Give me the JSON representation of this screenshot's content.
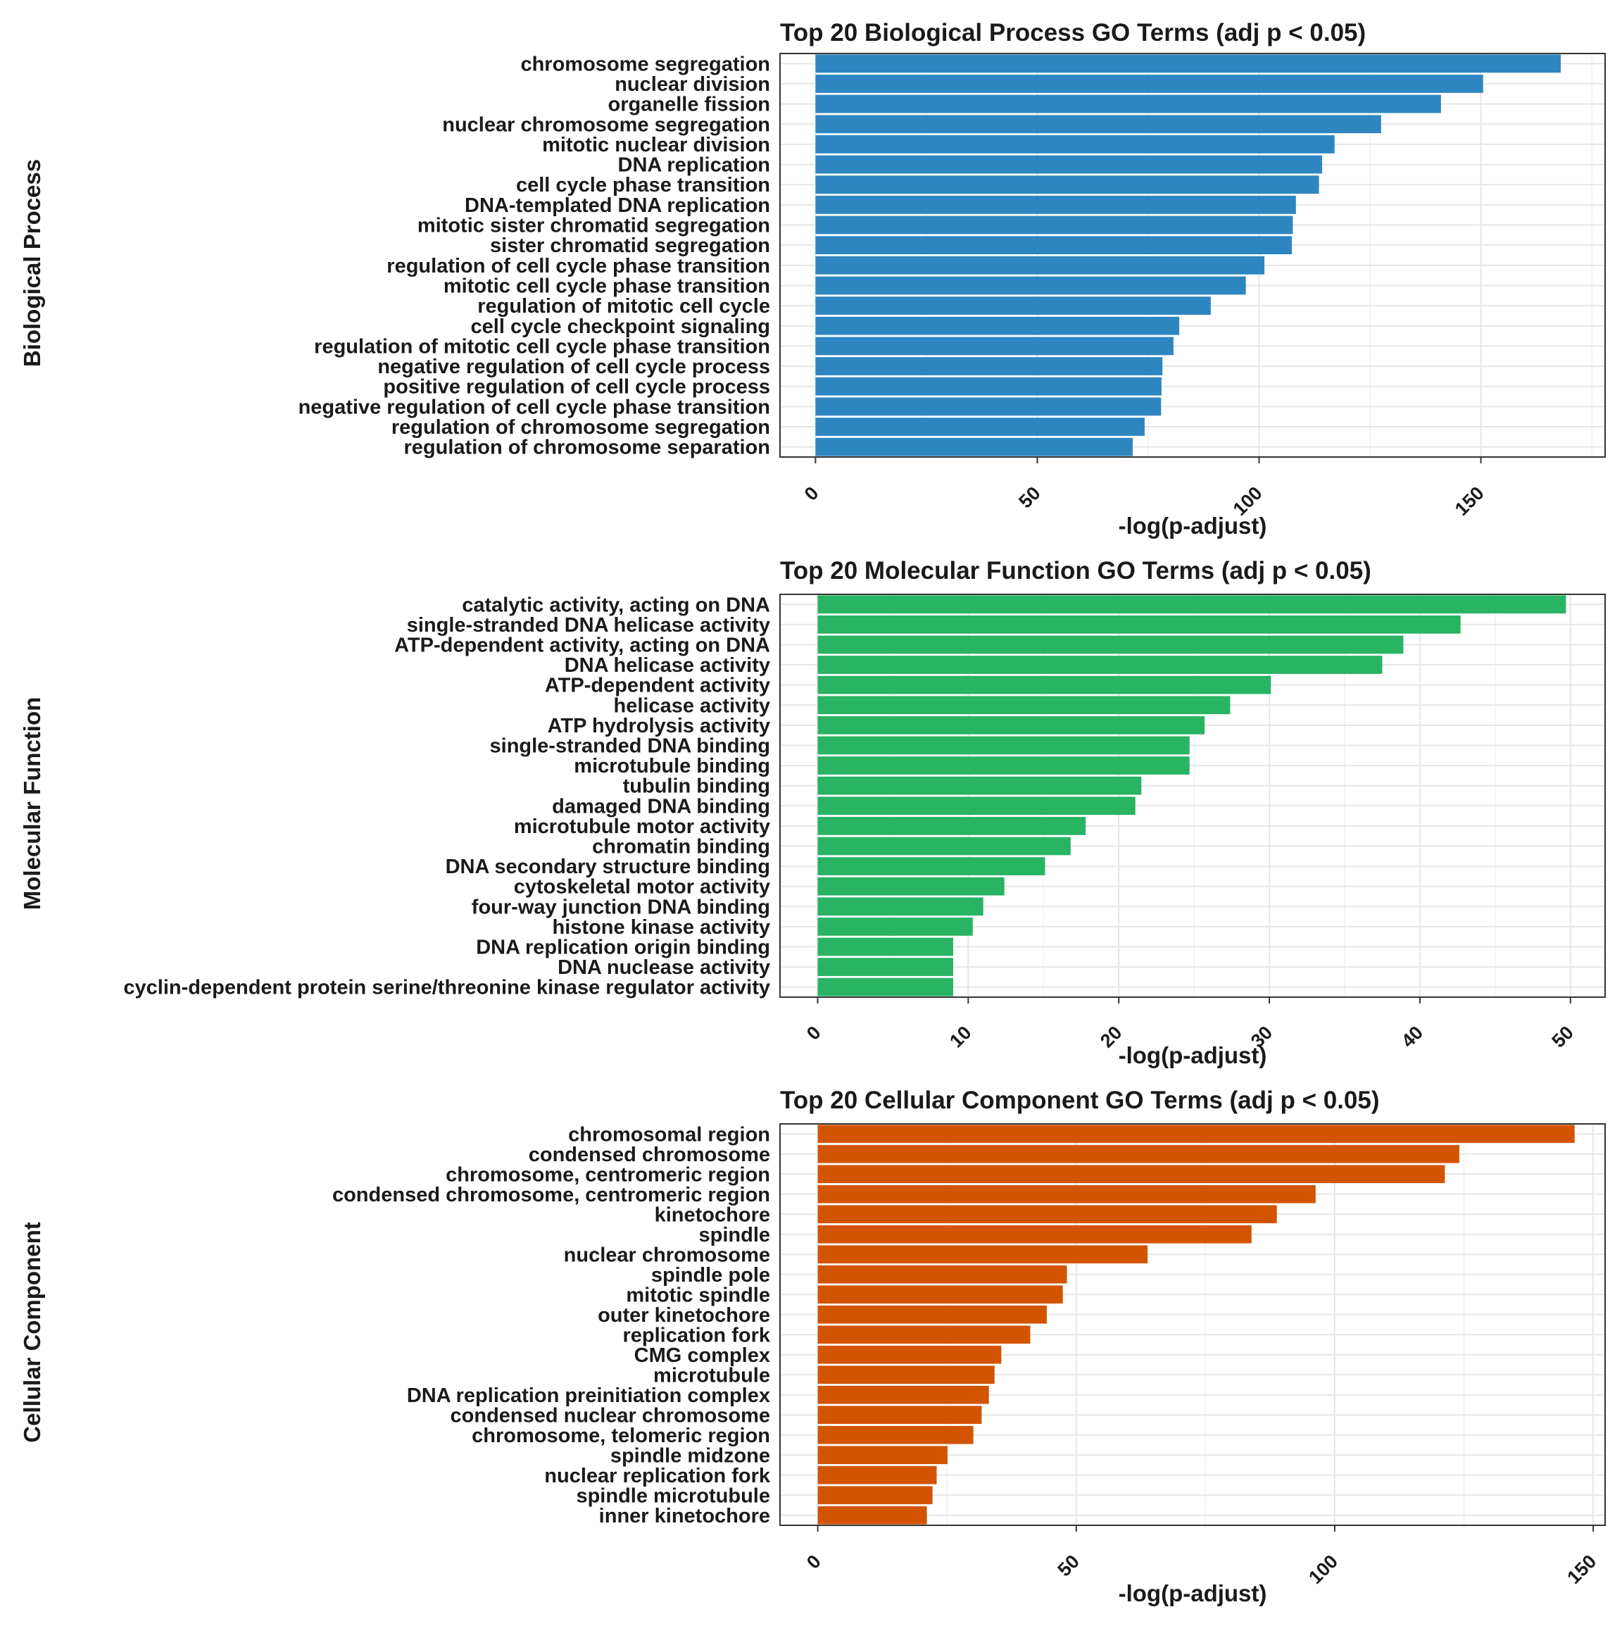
{
  "chart_data": [
    {
      "type": "bar",
      "orientation": "horizontal",
      "title": "Top 20 Biological Process GO Terms (adj p < 0.05)",
      "xlabel": "-log(p-adjust)",
      "ylabel": "Biological Process",
      "xlim": [
        -8,
        178
      ],
      "xticks": [
        0,
        50,
        100,
        150
      ],
      "grid": true,
      "color": "#2e86c1",
      "categories": [
        "chromosome segregation",
        "nuclear division",
        "organelle fission",
        "nuclear chromosome segregation",
        "mitotic nuclear division",
        "DNA replication",
        "cell cycle phase transition",
        "DNA-templated DNA replication",
        "mitotic sister chromatid segregation",
        "sister chromatid segregation",
        "regulation of cell cycle phase transition",
        "mitotic cell cycle phase transition",
        "regulation of mitotic cell cycle",
        "cell cycle checkpoint signaling",
        "regulation of mitotic cell cycle phase transition",
        "negative regulation of cell cycle process",
        "positive regulation of cell cycle process",
        "negative regulation of cell cycle phase transition",
        "regulation of chromosome segregation",
        "regulation of chromosome separation"
      ],
      "values": [
        168.0,
        150.5,
        141.0,
        127.5,
        117.0,
        114.2,
        113.5,
        108.3,
        107.6,
        107.4,
        101.2,
        97.0,
        89.1,
        82.0,
        80.7,
        78.2,
        78.0,
        77.9,
        74.2,
        71.5
      ]
    },
    {
      "type": "bar",
      "orientation": "horizontal",
      "title": "Top 20 Molecular Function GO Terms (adj p < 0.05)",
      "xlabel": "-log(p-adjust)",
      "ylabel": "Molecular Function",
      "xlim": [
        -2.5,
        52.3
      ],
      "xticks": [
        0,
        10,
        20,
        30,
        40,
        50
      ],
      "grid": true,
      "color": "#28b463",
      "categories": [
        "catalytic activity, acting on DNA",
        "single-stranded DNA helicase activity",
        "ATP-dependent activity, acting on DNA",
        "DNA helicase activity",
        "ATP-dependent activity",
        "helicase activity",
        "ATP hydrolysis activity",
        "single-stranded DNA binding",
        "microtubule binding",
        "tubulin binding",
        "damaged DNA binding",
        "microtubule motor activity",
        "chromatin binding",
        "DNA secondary structure binding",
        "cytoskeletal motor activity",
        "four-way junction DNA binding",
        "histone kinase activity",
        "DNA replication origin binding",
        "DNA nuclease activity",
        "cyclin-dependent protein serine/threonine kinase regulator activity"
      ],
      "values": [
        49.7,
        42.7,
        38.9,
        37.5,
        30.1,
        27.4,
        25.7,
        24.7,
        24.7,
        21.5,
        21.1,
        17.8,
        16.8,
        15.1,
        12.4,
        11.0,
        10.3,
        9.0,
        9.0,
        9.0
      ]
    },
    {
      "type": "bar",
      "orientation": "horizontal",
      "title": "Top 20 Cellular Component GO Terms (adj p < 0.05)",
      "xlabel": "-log(p-adjust)",
      "ylabel": "Cellular Component",
      "xlim": [
        -7.3,
        152.3
      ],
      "xticks": [
        0,
        50,
        100,
        150
      ],
      "grid": true,
      "color": "#d35400",
      "categories": [
        "chromosomal region",
        "condensed chromosome",
        "chromosome, centromeric region",
        "condensed chromosome, centromeric region",
        "kinetochore",
        "spindle",
        "nuclear chromosome",
        "spindle pole",
        "mitotic spindle",
        "outer kinetochore",
        "replication fork",
        "CMG complex",
        "microtubule",
        "DNA replication preinitiation complex",
        "condensed nuclear chromosome",
        "chromosome, telomeric region",
        "spindle midzone",
        "nuclear replication fork",
        "spindle microtubule",
        "inner kinetochore"
      ],
      "values": [
        146.4,
        124.1,
        121.3,
        96.3,
        88.8,
        83.9,
        63.8,
        48.2,
        47.4,
        44.3,
        41.1,
        35.5,
        34.2,
        33.1,
        31.7,
        30.1,
        25.1,
        23.0,
        22.2,
        21.1
      ]
    }
  ]
}
